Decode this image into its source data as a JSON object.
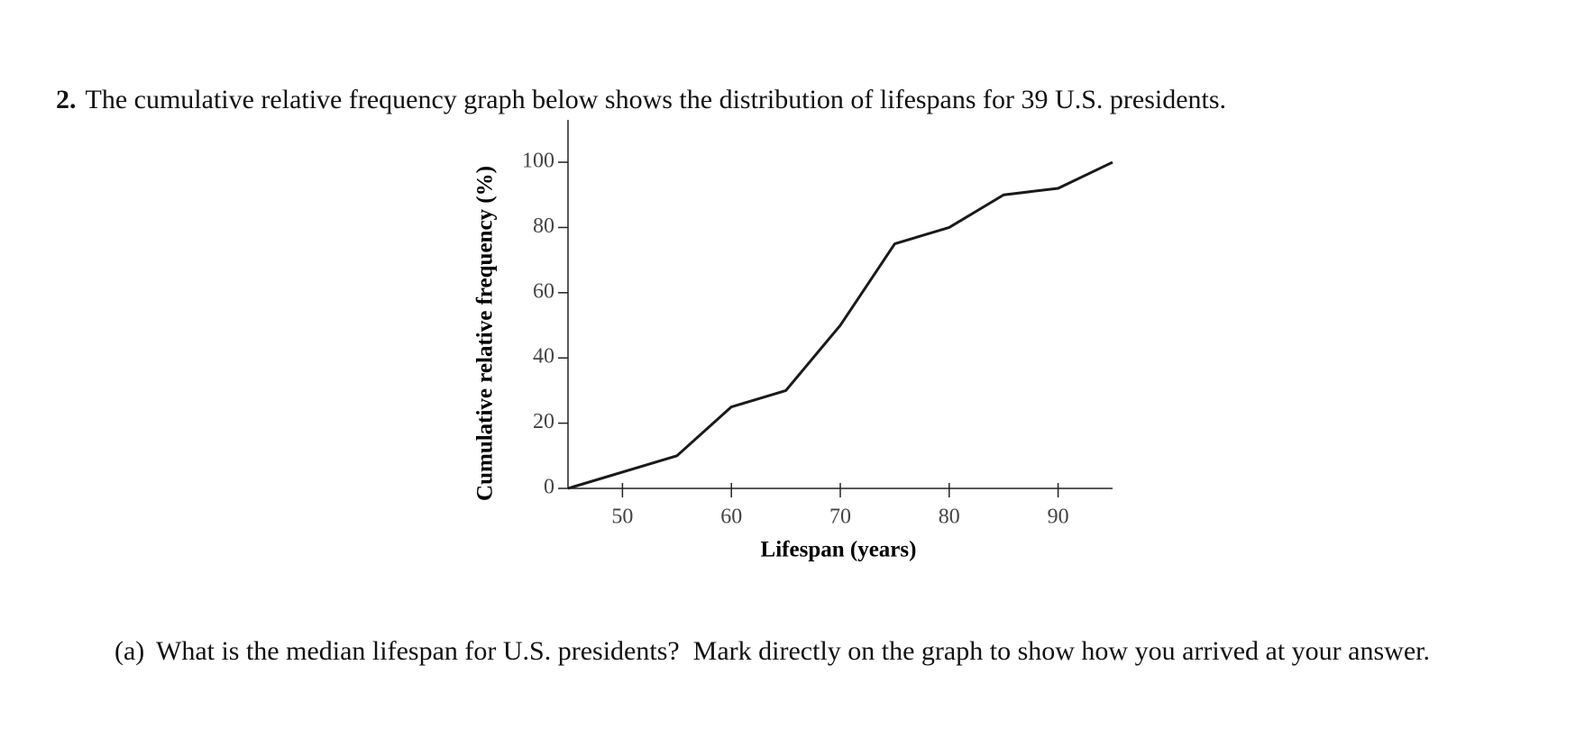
{
  "question": {
    "number": "2.",
    "text": "The cumulative relative frequency graph below shows the distribution of lifespans for 39 U.S. presidents."
  },
  "chart_data": {
    "type": "line",
    "x_label": "Lifespan (years)",
    "y_label": "Cumulative relative frequency (%)",
    "x": [
      45,
      55,
      60,
      65,
      70,
      75,
      80,
      85,
      90,
      95
    ],
    "series": [
      {
        "name": "Cumulative relative frequency",
        "color": "#1a1a1a",
        "values": [
          0,
          10,
          25,
          30,
          50,
          75,
          80,
          90,
          92,
          100
        ]
      }
    ],
    "xlim": [
      45,
      95
    ],
    "ylim": [
      0,
      113
    ],
    "xticks": [
      50,
      60,
      70,
      80,
      90
    ],
    "yticks": [
      0,
      20,
      40,
      60,
      80,
      100
    ]
  },
  "part_a": {
    "label": "(a)",
    "text": "What is the median lifespan for U.S. presidents?  Mark directly on the graph to show how you arrived at your answer."
  }
}
